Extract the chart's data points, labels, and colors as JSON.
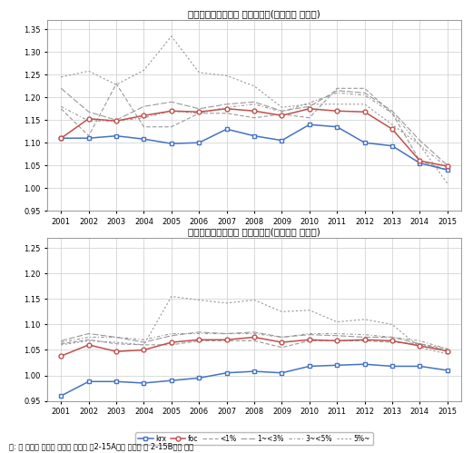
{
  "years": [
    2001,
    2002,
    2003,
    2004,
    2005,
    2006,
    2007,
    2008,
    2009,
    2010,
    2011,
    2012,
    2013,
    2014,
    2015
  ],
  "chart1": {
    "title": "연구개발집약도대별 매출성장률(기업군별 중간치)",
    "ylim": [
      0.95,
      1.37
    ],
    "yticks": [
      0.95,
      1.0,
      1.05,
      1.1,
      1.15,
      1.2,
      1.25,
      1.3,
      1.35
    ],
    "krx": [
      1.11,
      1.11,
      1.115,
      1.108,
      1.098,
      1.1,
      1.13,
      1.115,
      1.105,
      1.14,
      1.135,
      1.1,
      1.093,
      1.055,
      1.04
    ],
    "foc": [
      1.11,
      1.153,
      1.148,
      1.16,
      1.17,
      1.168,
      1.175,
      1.17,
      1.16,
      1.175,
      1.17,
      1.168,
      1.13,
      1.06,
      1.048
    ],
    "lt1": [
      1.175,
      1.115,
      1.23,
      1.135,
      1.135,
      1.165,
      1.165,
      1.155,
      1.163,
      1.155,
      1.22,
      1.22,
      1.165,
      1.06,
      1.04
    ],
    "lt3": [
      1.22,
      1.168,
      1.15,
      1.18,
      1.19,
      1.175,
      1.185,
      1.19,
      1.17,
      1.18,
      1.215,
      1.21,
      1.17,
      1.105,
      1.05
    ],
    "lt5": [
      1.18,
      1.148,
      1.148,
      1.155,
      1.17,
      1.165,
      1.178,
      1.185,
      1.168,
      1.188,
      1.21,
      1.205,
      1.165,
      1.095,
      1.045
    ],
    "gt5": [
      1.245,
      1.258,
      1.228,
      1.26,
      1.335,
      1.255,
      1.248,
      1.225,
      1.178,
      1.185,
      1.185,
      1.185,
      1.14,
      1.095,
      1.01
    ]
  },
  "chart2": {
    "title": "연구개발집약도대별 고용성장률(기업군별 중간치)",
    "ylim": [
      0.95,
      1.27
    ],
    "yticks": [
      0.95,
      1.0,
      1.05,
      1.1,
      1.15,
      1.2,
      1.25
    ],
    "krx": [
      0.96,
      0.988,
      0.988,
      0.985,
      0.99,
      0.995,
      1.005,
      1.008,
      1.005,
      1.018,
      1.02,
      1.022,
      1.018,
      1.018,
      1.01
    ],
    "foc": [
      1.038,
      1.06,
      1.047,
      1.05,
      1.065,
      1.07,
      1.07,
      1.075,
      1.065,
      1.07,
      1.068,
      1.07,
      1.068,
      1.058,
      1.048
    ],
    "lt1": [
      1.062,
      1.07,
      1.062,
      1.06,
      1.06,
      1.068,
      1.068,
      1.068,
      1.055,
      1.068,
      1.068,
      1.068,
      1.065,
      1.062,
      1.052
    ],
    "lt3": [
      1.068,
      1.082,
      1.075,
      1.065,
      1.078,
      1.085,
      1.082,
      1.085,
      1.075,
      1.08,
      1.078,
      1.075,
      1.075,
      1.062,
      1.048
    ],
    "lt5": [
      1.065,
      1.075,
      1.075,
      1.07,
      1.082,
      1.082,
      1.082,
      1.082,
      1.075,
      1.082,
      1.082,
      1.08,
      1.075,
      1.068,
      1.052
    ],
    "gt5": [
      1.06,
      1.068,
      1.065,
      1.06,
      1.155,
      1.148,
      1.142,
      1.148,
      1.125,
      1.128,
      1.105,
      1.11,
      1.1,
      1.055,
      1.042
    ]
  },
  "colors": {
    "krx": "#4472C4",
    "foc": "#C0504D"
  },
  "footnote": "주: 위 그림과 관련된 통계는 〈부록 표2-15A〉와 〈부록 표 2-15B〉를 참조"
}
